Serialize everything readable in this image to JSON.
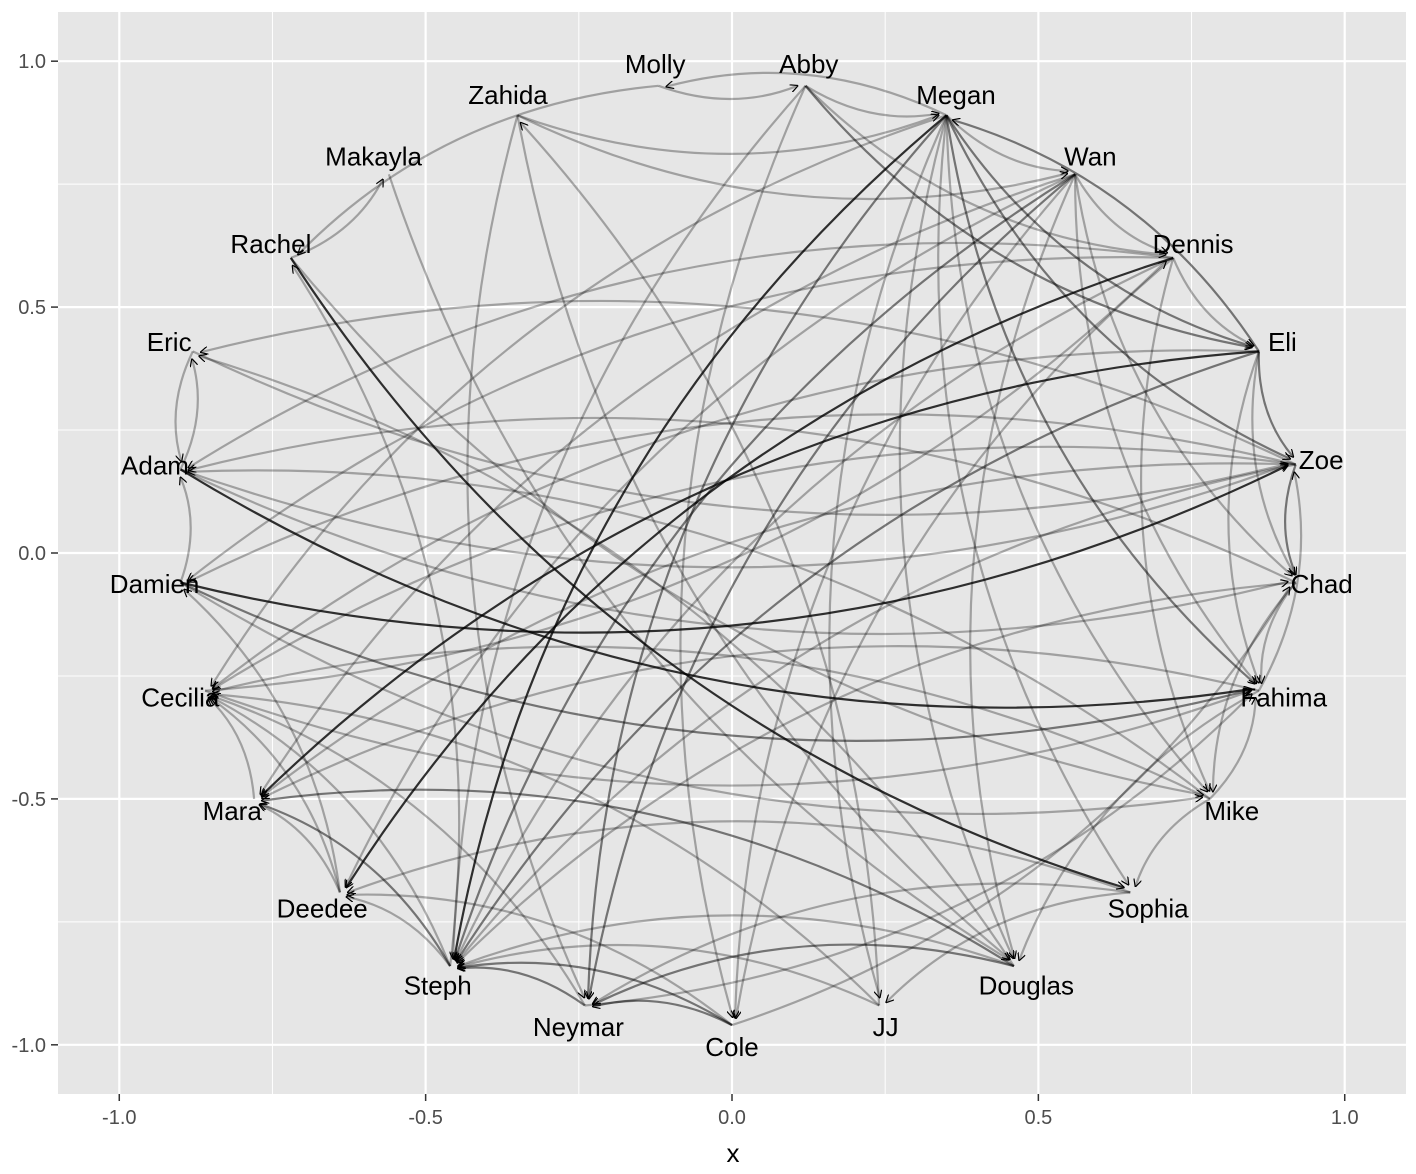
{
  "chart_data": {
    "type": "network",
    "layout": "circle",
    "xlabel": "x",
    "ylabel": "",
    "xlim": [
      -1.1,
      1.1
    ],
    "ylim": [
      -1.1,
      1.1
    ],
    "x_ticks": [
      -1.0,
      -0.5,
      0.0,
      0.5,
      1.0
    ],
    "x_tick_labels": [
      "-1.0",
      "-0.5",
      "0.0",
      "0.5",
      "1.0"
    ],
    "y_ticks": [
      -1.0,
      -0.5,
      0.0,
      0.5,
      1.0
    ],
    "y_tick_labels": [
      "-1.0",
      "-0.5",
      "0.0",
      "0.5",
      "1.0"
    ],
    "grid": true,
    "colors": {
      "panel": "#e6e6e6",
      "grid": "#ffffff",
      "edge": "#000000"
    },
    "nodes": [
      {
        "name": "Molly",
        "x": -0.12,
        "y": 0.95
      },
      {
        "name": "Abby",
        "x": 0.12,
        "y": 0.95
      },
      {
        "name": "Megan",
        "x": 0.35,
        "y": 0.89
      },
      {
        "name": "Wan",
        "x": 0.56,
        "y": 0.77
      },
      {
        "name": "Dennis",
        "x": 0.72,
        "y": 0.6
      },
      {
        "name": "Eli",
        "x": 0.86,
        "y": 0.41
      },
      {
        "name": "Zoe",
        "x": 0.92,
        "y": 0.18
      },
      {
        "name": "Chad",
        "x": 0.92,
        "y": -0.06
      },
      {
        "name": "Fahima",
        "x": 0.86,
        "y": -0.28
      },
      {
        "name": "Mike",
        "x": 0.78,
        "y": -0.5
      },
      {
        "name": "Sophia",
        "x": 0.65,
        "y": -0.69
      },
      {
        "name": "Douglas",
        "x": 0.46,
        "y": -0.84
      },
      {
        "name": "JJ",
        "x": 0.24,
        "y": -0.92
      },
      {
        "name": "Cole",
        "x": 0.0,
        "y": -0.96
      },
      {
        "name": "Neymar",
        "x": -0.24,
        "y": -0.92
      },
      {
        "name": "Steph",
        "x": -0.46,
        "y": -0.84
      },
      {
        "name": "Deedee",
        "x": -0.64,
        "y": -0.69
      },
      {
        "name": "Mara",
        "x": -0.78,
        "y": -0.5
      },
      {
        "name": "Cecilia",
        "x": -0.86,
        "y": -0.28
      },
      {
        "name": "Damien",
        "x": -0.9,
        "y": -0.06
      },
      {
        "name": "Adam",
        "x": -0.9,
        "y": 0.17
      },
      {
        "name": "Eric",
        "x": -0.88,
        "y": 0.41
      },
      {
        "name": "Rachel",
        "x": -0.72,
        "y": 0.6
      },
      {
        "name": "Makayla",
        "x": -0.56,
        "y": 0.77
      },
      {
        "name": "Zahida",
        "x": -0.35,
        "y": 0.89
      }
    ],
    "edges": [
      [
        "Molly",
        "Abby",
        0.3
      ],
      [
        "Molly",
        "Rachel",
        0.3
      ],
      [
        "Abby",
        "Megan",
        0.3
      ],
      [
        "Abby",
        "Dennis",
        0.3
      ],
      [
        "Abby",
        "Eli",
        0.5
      ],
      [
        "Abby",
        "Steph",
        0.3
      ],
      [
        "Abby",
        "Cole",
        0.3
      ],
      [
        "Megan",
        "Wan",
        0.3
      ],
      [
        "Megan",
        "Eli",
        0.5
      ],
      [
        "Megan",
        "Fahima",
        0.5
      ],
      [
        "Megan",
        "Mike",
        0.3
      ],
      [
        "Megan",
        "Zoe",
        0.5
      ],
      [
        "Megan",
        "Douglas",
        0.3
      ],
      [
        "Megan",
        "Molly",
        0.3
      ],
      [
        "Megan",
        "Neymar",
        0.5
      ],
      [
        "Megan",
        "JJ",
        0.3
      ],
      [
        "Megan",
        "Steph",
        0.8
      ],
      [
        "Megan",
        "Sophia",
        0.3
      ],
      [
        "Wan",
        "Dennis",
        0.3
      ],
      [
        "Wan",
        "Fahima",
        0.3
      ],
      [
        "Wan",
        "Steph",
        0.5
      ],
      [
        "Wan",
        "Deedee",
        0.3
      ],
      [
        "Wan",
        "Mara",
        0.3
      ],
      [
        "Wan",
        "Douglas",
        0.3
      ],
      [
        "Wan",
        "Chad",
        0.3
      ],
      [
        "Wan",
        "Neymar",
        0.5
      ],
      [
        "Dennis",
        "Eli",
        0.3
      ],
      [
        "Dennis",
        "Steph",
        0.3
      ],
      [
        "Dennis",
        "Adam",
        0.3
      ],
      [
        "Dennis",
        "Damien",
        0.3
      ],
      [
        "Dennis",
        "Mike",
        0.3
      ],
      [
        "Dennis",
        "Deedee",
        0.8
      ],
      [
        "Dennis",
        "Cole",
        0.3
      ],
      [
        "Eli",
        "Zoe",
        0.5
      ],
      [
        "Eli",
        "Chad",
        0.3
      ],
      [
        "Eli",
        "Mara",
        0.8
      ],
      [
        "Eli",
        "Steph",
        0.5
      ],
      [
        "Eli",
        "Fahima",
        0.3
      ],
      [
        "Eli",
        "Megan",
        0.5
      ],
      [
        "Zoe",
        "Chad",
        0.5
      ],
      [
        "Zoe",
        "Steph",
        0.3
      ],
      [
        "Zoe",
        "Cecilia",
        0.3
      ],
      [
        "Zoe",
        "Damien",
        0.3
      ],
      [
        "Zoe",
        "Mara",
        0.3
      ],
      [
        "Zoe",
        "Eric",
        0.3
      ],
      [
        "Chad",
        "Fahima",
        0.3
      ],
      [
        "Chad",
        "Adam",
        0.3
      ],
      [
        "Chad",
        "Steph",
        0.3
      ],
      [
        "Chad",
        "Mike",
        0.3
      ],
      [
        "Fahima",
        "Zoe",
        0.3
      ],
      [
        "Fahima",
        "Mara",
        0.3
      ],
      [
        "Fahima",
        "Douglas",
        0.3
      ],
      [
        "Mike",
        "Cecilia",
        0.3
      ],
      [
        "Mike",
        "Adam",
        0.3
      ],
      [
        "Mike",
        "Fahima",
        0.3
      ],
      [
        "Mike",
        "Sophia",
        0.3
      ],
      [
        "Sophia",
        "JJ",
        0.3
      ],
      [
        "Sophia",
        "Deedee",
        0.3
      ],
      [
        "Sophia",
        "Neymar",
        0.3
      ],
      [
        "Douglas",
        "Steph",
        0.3
      ],
      [
        "Douglas",
        "Mara",
        0.5
      ],
      [
        "Douglas",
        "Neymar",
        0.5
      ],
      [
        "Douglas",
        "Eric",
        0.3
      ],
      [
        "JJ",
        "Cecilia",
        0.3
      ],
      [
        "JJ",
        "Steph",
        0.3
      ],
      [
        "JJ",
        "Zahida",
        0.3
      ],
      [
        "Cole",
        "Neymar",
        0.5
      ],
      [
        "Cole",
        "Steph",
        0.5
      ],
      [
        "Cole",
        "Chad",
        0.3
      ],
      [
        "Cole",
        "Deedee",
        0.3
      ],
      [
        "Neymar",
        "Steph",
        0.5
      ],
      [
        "Neymar",
        "Fahima",
        0.3
      ],
      [
        "Neymar",
        "Cecilia",
        0.3
      ],
      [
        "Steph",
        "Mara",
        0.5
      ],
      [
        "Steph",
        "Deedee",
        0.3
      ],
      [
        "Steph",
        "Rachel",
        0.3
      ],
      [
        "Steph",
        "Cecilia",
        0.3
      ],
      [
        "Deedee",
        "Mara",
        0.3
      ],
      [
        "Deedee",
        "Damien",
        0.3
      ],
      [
        "Deedee",
        "Cecilia",
        0.3
      ],
      [
        "Mara",
        "Cecilia",
        0.3
      ],
      [
        "Cecilia",
        "Fahima",
        0.3
      ],
      [
        "Damien",
        "Zoe",
        0.8
      ],
      [
        "Damien",
        "Fahima",
        0.5
      ],
      [
        "Damien",
        "Adam",
        0.3
      ],
      [
        "Damien",
        "Mike",
        0.3
      ],
      [
        "Adam",
        "Fahima",
        0.8
      ],
      [
        "Adam",
        "Chad",
        0.3
      ],
      [
        "Adam",
        "Eric",
        0.3
      ],
      [
        "Adam",
        "Zoe",
        0.3
      ],
      [
        "Eric",
        "Zoe",
        0.3
      ],
      [
        "Eric",
        "Adam",
        0.3
      ],
      [
        "Rachel",
        "Makayla",
        0.3
      ],
      [
        "Rachel",
        "Sophia",
        0.8
      ],
      [
        "Rachel",
        "Mike",
        0.3
      ],
      [
        "Makayla",
        "Douglas",
        0.3
      ],
      [
        "Zahida",
        "Douglas",
        0.3
      ],
      [
        "Zahida",
        "Megan",
        0.3
      ],
      [
        "Zahida",
        "Neymar",
        0.3
      ],
      [
        "Zahida",
        "Wan",
        0.3
      ],
      [
        "Cecilia",
        "Dennis",
        0.3
      ],
      [
        "Megan",
        "Cecilia",
        0.3
      ],
      [
        "Eli",
        "Cecilia",
        0.3
      ],
      [
        "Wan",
        "Cole",
        0.3
      ]
    ]
  }
}
